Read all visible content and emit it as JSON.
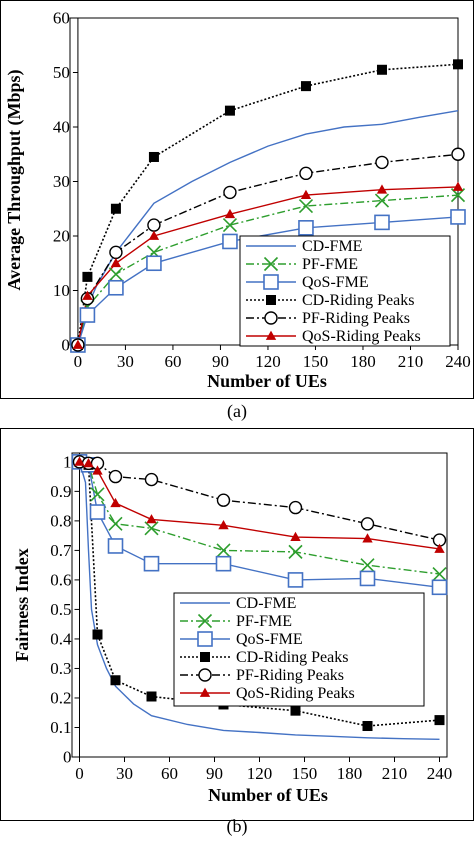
{
  "chart_data": [
    {
      "type": "line",
      "caption": "(a)",
      "xlabel": "Number  of UEs",
      "ylabel": "Average Throughput (Mbps)",
      "xlim": [
        -5,
        240
      ],
      "ylim": [
        0,
        60
      ],
      "x_ticks": [
        "0",
        "30",
        "60",
        "90",
        "120",
        "150",
        "180",
        "210",
        "240"
      ],
      "y_ticks": [
        "0",
        "10",
        "20",
        "30",
        "40",
        "50",
        "60"
      ],
      "legend_position": "bottom-right",
      "grid": false,
      "series": [
        {
          "name": "CD-FME",
          "color": "#4472c4",
          "dash": "solid",
          "marker": "none",
          "x": [
            0,
            6,
            12,
            24,
            48,
            72,
            96,
            120,
            144,
            168,
            192,
            216,
            240
          ],
          "y": [
            0,
            7,
            11,
            17,
            26,
            30,
            33.5,
            36.5,
            38.7,
            40,
            40.5,
            41.8,
            43
          ]
        },
        {
          "name": "PF-FME",
          "color": "#2e9e2e",
          "dash": "dashdot",
          "marker": "x",
          "x": [
            0,
            6,
            24,
            48,
            96,
            144,
            192,
            240
          ],
          "y": [
            0,
            7,
            13,
            17,
            22,
            25.5,
            26.5,
            27.5
          ]
        },
        {
          "name": "QoS-FME",
          "color": "#4472c4",
          "dash": "solid",
          "marker": "square",
          "x": [
            0,
            6,
            24,
            48,
            96,
            144,
            192,
            240
          ],
          "y": [
            0,
            5.5,
            10.5,
            15,
            19,
            21.5,
            22.5,
            23.5
          ]
        },
        {
          "name": "CD-Riding Peaks",
          "color": "#000000",
          "dash": "dotted",
          "marker": "filled-square",
          "x": [
            0,
            6,
            24,
            48,
            96,
            144,
            192,
            240
          ],
          "y": [
            0,
            12.5,
            25,
            34.5,
            43,
            47.5,
            50.5,
            51.5
          ]
        },
        {
          "name": "PF-Riding Peaks",
          "color": "#000000",
          "dash": "dashdot",
          "marker": "circle",
          "x": [
            0,
            6,
            24,
            48,
            96,
            144,
            192,
            240
          ],
          "y": [
            0,
            8.5,
            17,
            22,
            28,
            31.5,
            33.5,
            35
          ]
        },
        {
          "name": "QoS-Riding Peaks",
          "color": "#c00000",
          "dash": "solid",
          "marker": "triangle",
          "x": [
            0,
            6,
            24,
            48,
            96,
            144,
            192,
            240
          ],
          "y": [
            0,
            9,
            15,
            20,
            24,
            27.5,
            28.5,
            29
          ]
        }
      ]
    },
    {
      "type": "line",
      "caption": "(b)",
      "xlabel": "Number  of UEs",
      "ylabel": "Fairness Index",
      "xlim": [
        -5,
        245
      ],
      "ylim": [
        0,
        1.03
      ],
      "x_ticks": [
        "0",
        "30",
        "60",
        "90",
        "120",
        "150",
        "180",
        "210",
        "240"
      ],
      "y_ticks": [
        "0",
        "0.1",
        "0.2",
        "0.3",
        "0.4",
        "0.5",
        "0.6",
        "0.7",
        "0.8",
        "0.9",
        "1"
      ],
      "legend_position": "bottom-right",
      "grid": false,
      "series": [
        {
          "name": "CD-FME",
          "color": "#4472c4",
          "dash": "solid",
          "marker": "none",
          "x": [
            0,
            4,
            6,
            8,
            12,
            18,
            24,
            36,
            48,
            72,
            96,
            120,
            144,
            168,
            192,
            216,
            240
          ],
          "y": [
            1,
            0.93,
            0.7,
            0.5,
            0.38,
            0.3,
            0.24,
            0.18,
            0.14,
            0.11,
            0.09,
            0.083,
            0.075,
            0.07,
            0.065,
            0.062,
            0.06
          ]
        },
        {
          "name": "PF-FME",
          "color": "#2e9e2e",
          "dash": "dashdot",
          "marker": "x",
          "x": [
            0,
            6,
            12,
            24,
            48,
            96,
            144,
            192,
            240
          ],
          "y": [
            1,
            0.99,
            0.89,
            0.79,
            0.775,
            0.7,
            0.695,
            0.65,
            0.62
          ]
        },
        {
          "name": "QoS-FME",
          "color": "#4472c4",
          "dash": "solid",
          "marker": "square",
          "x": [
            0,
            6,
            12,
            24,
            48,
            96,
            144,
            192,
            240
          ],
          "y": [
            1,
            0.99,
            0.83,
            0.715,
            0.655,
            0.655,
            0.6,
            0.605,
            0.575
          ]
        },
        {
          "name": "CD-Riding Peaks",
          "color": "#000000",
          "dash": "dotted",
          "marker": "filled-square",
          "x": [
            0,
            6,
            12,
            24,
            48,
            96,
            144,
            192,
            240
          ],
          "y": [
            1,
            0.99,
            0.415,
            0.26,
            0.205,
            0.178,
            0.157,
            0.105,
            0.125
          ]
        },
        {
          "name": "PF-Riding Peaks",
          "color": "#000000",
          "dash": "dashdot",
          "marker": "circle",
          "x": [
            0,
            6,
            12,
            24,
            48,
            96,
            144,
            192,
            240
          ],
          "y": [
            1,
            0.995,
            0.995,
            0.95,
            0.94,
            0.87,
            0.845,
            0.79,
            0.735
          ]
        },
        {
          "name": "QoS-Riding Peaks",
          "color": "#c00000",
          "dash": "solid",
          "marker": "triangle",
          "x": [
            0,
            6,
            12,
            24,
            48,
            96,
            144,
            192,
            240
          ],
          "y": [
            1,
            0.995,
            0.97,
            0.86,
            0.805,
            0.785,
            0.745,
            0.74,
            0.705
          ]
        }
      ]
    }
  ]
}
